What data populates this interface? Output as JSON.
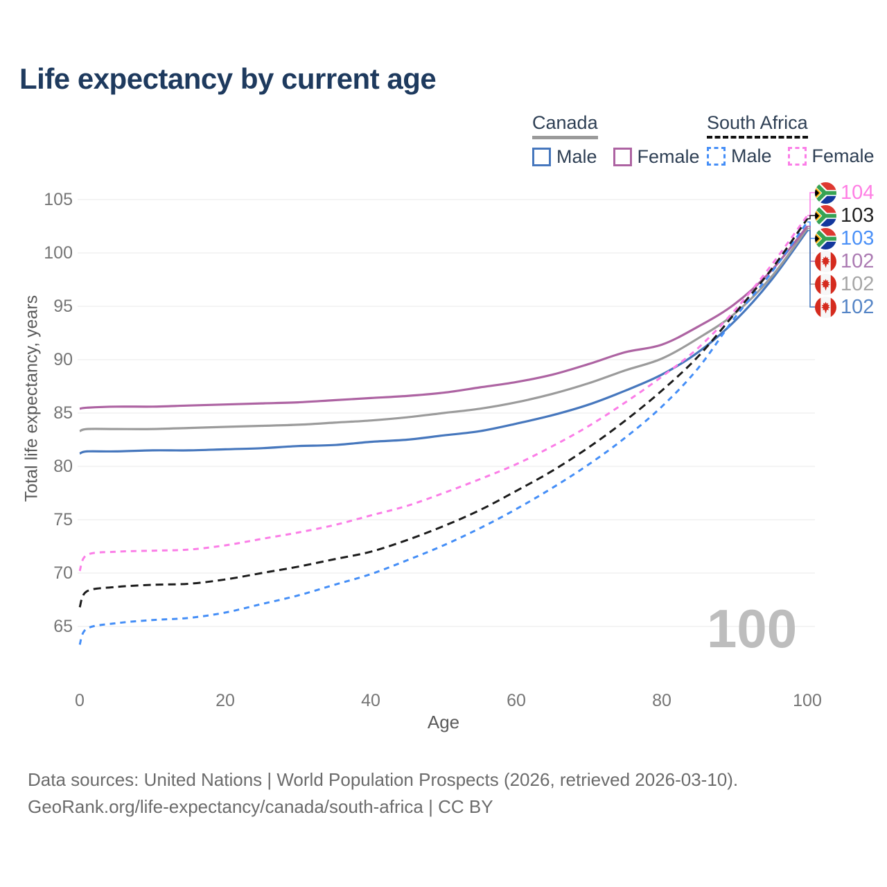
{
  "title": "Life expectancy by current age",
  "legend": {
    "canada": {
      "label": "Canada",
      "male": "Male",
      "female": "Female"
    },
    "south_africa": {
      "label": "South Africa",
      "male": "Male",
      "female": "Female"
    }
  },
  "chart_data": {
    "type": "line",
    "title": "Life expectancy by current age",
    "xlabel": "Age",
    "ylabel": "Total life expectancy, years",
    "xlim": [
      0,
      100
    ],
    "ylim": [
      63,
      106
    ],
    "xticks": [
      0,
      20,
      40,
      60,
      80,
      100
    ],
    "yticks": [
      65,
      70,
      75,
      80,
      85,
      90,
      95,
      100,
      105
    ],
    "grid": "horizontal",
    "legend_position": "top-right",
    "watermark": "100",
    "x": [
      0,
      1,
      5,
      10,
      15,
      20,
      25,
      30,
      35,
      40,
      45,
      50,
      55,
      60,
      65,
      70,
      75,
      80,
      85,
      90,
      95,
      100
    ],
    "series": [
      {
        "name": "South Africa Female",
        "country": "South Africa",
        "sex": "Female",
        "dash": "dashed",
        "color": "#fb7de7",
        "label_color": "#ff7ee4",
        "end_label": "104",
        "flag": "sa",
        "values": [
          70.2,
          71.7,
          72.0,
          72.1,
          72.2,
          72.6,
          73.2,
          73.8,
          74.5,
          75.4,
          76.3,
          77.5,
          78.8,
          80.2,
          81.9,
          83.8,
          86.0,
          88.4,
          91.1,
          94.6,
          98.8,
          103.5
        ]
      },
      {
        "name": "South Africa Total",
        "country": "South Africa",
        "sex": "Total",
        "dash": "dashed",
        "color": "#1c1c1c",
        "label_color": "#1f1f1f",
        "end_label": "103",
        "flag": "sa",
        "values": [
          66.8,
          68.3,
          68.7,
          68.9,
          69.0,
          69.4,
          70.0,
          70.6,
          71.3,
          72.0,
          73.1,
          74.4,
          75.9,
          77.7,
          79.6,
          81.8,
          84.3,
          87.1,
          90.3,
          94.3,
          98.4,
          103.2
        ]
      },
      {
        "name": "South Africa Male",
        "country": "South Africa",
        "sex": "Male",
        "dash": "dashed",
        "color": "#448ef7",
        "label_color": "#4a90f7",
        "end_label": "103",
        "flag": "sa",
        "values": [
          63.3,
          64.8,
          65.3,
          65.6,
          65.8,
          66.3,
          67.1,
          67.9,
          68.9,
          69.9,
          71.2,
          72.6,
          74.2,
          76.0,
          78.0,
          80.2,
          82.7,
          85.6,
          89.2,
          93.9,
          98.1,
          102.9
        ]
      },
      {
        "name": "Canada Female",
        "country": "Canada",
        "sex": "Female",
        "dash": "solid",
        "color": "#ad63a2",
        "label_color": "#ab7ab2",
        "end_label": "102",
        "flag": "ca",
        "values": [
          85.4,
          85.5,
          85.6,
          85.6,
          85.7,
          85.8,
          85.9,
          86.0,
          86.2,
          86.4,
          86.6,
          86.9,
          87.4,
          87.9,
          88.6,
          89.6,
          90.7,
          91.4,
          93.1,
          95.2,
          98.3,
          102.5
        ]
      },
      {
        "name": "Canada Total",
        "country": "Canada",
        "sex": "Total",
        "dash": "solid",
        "color": "#9b9b9b",
        "label_color": "#a6a6a6",
        "end_label": "102",
        "flag": "ca",
        "values": [
          83.3,
          83.5,
          83.5,
          83.5,
          83.6,
          83.7,
          83.8,
          83.9,
          84.1,
          84.3,
          84.6,
          85.0,
          85.4,
          86.0,
          86.8,
          87.8,
          89.0,
          90.1,
          92.0,
          94.3,
          97.7,
          102.3
        ]
      },
      {
        "name": "Canada Male",
        "country": "Canada",
        "sex": "Male",
        "dash": "solid",
        "color": "#4677bd",
        "label_color": "#5585c6",
        "end_label": "102",
        "flag": "ca",
        "values": [
          81.2,
          81.4,
          81.4,
          81.5,
          81.5,
          81.6,
          81.7,
          81.9,
          82.0,
          82.3,
          82.5,
          82.9,
          83.3,
          84.0,
          84.8,
          85.8,
          87.1,
          88.6,
          90.7,
          93.6,
          97.4,
          102.1
        ]
      }
    ]
  },
  "footer": {
    "line1": "Data sources: United Nations | World Population Prospects (2026, retrieved 2026-03-10).",
    "line2": "GeoRank.org/life-expectancy/canada/south-africa | CC BY"
  }
}
